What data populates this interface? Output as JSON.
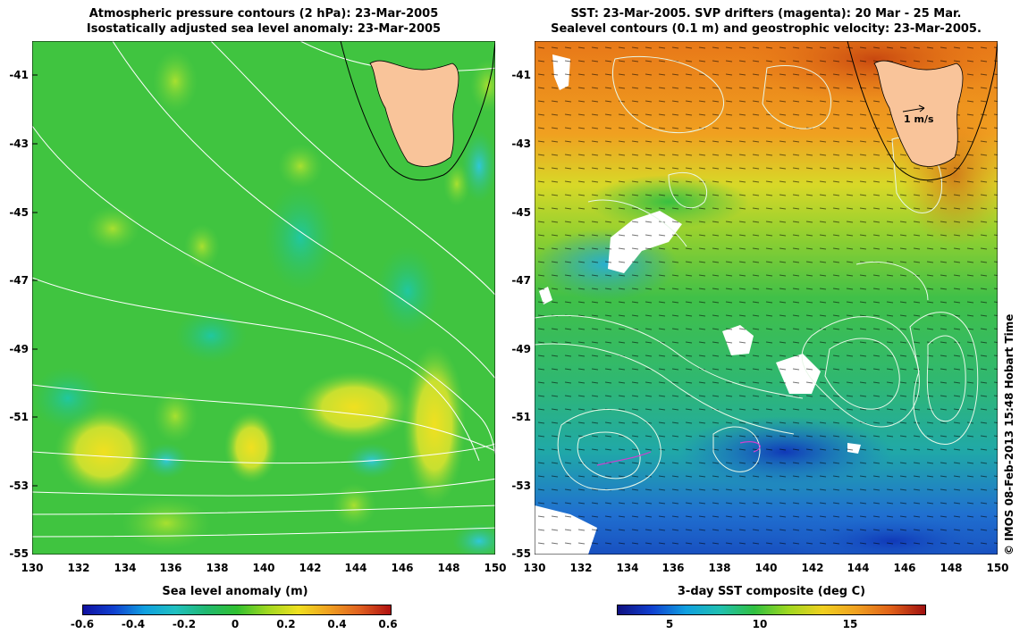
{
  "left": {
    "title_line1": "Atmospheric pressure contours (2 hPa): 23-Mar-2005",
    "title_line2": "Isostatically adjusted sea level anomaly: 23-Mar-2005",
    "colorbar_label": "Sea level anomaly (m)",
    "colorbar_ticks": [
      "-0.6",
      "-0.4",
      "-0.2",
      "0",
      "0.2",
      "0.4",
      "0.6"
    ]
  },
  "right": {
    "title_line1": "SST: 23-Mar-2005. SVP drifters (magenta): 20 Mar - 25 Mar.",
    "title_line2": "Sealevel contours (0.1 m) and geostrophic velocity: 23-Mar-2005.",
    "colorbar_label": "3-day SST composite (deg C)",
    "colorbar_ticks": [
      "5",
      "10",
      "15"
    ],
    "velocity_scale_label": "1 m/s"
  },
  "axes": {
    "lat_ticks": [
      "-41",
      "-43",
      "-45",
      "-47",
      "-49",
      "-51",
      "-53",
      "-55"
    ],
    "lon_ticks": [
      "130",
      "132",
      "134",
      "136",
      "138",
      "140",
      "142",
      "144",
      "146",
      "148",
      "150"
    ]
  },
  "credit": "© IMOS 08-Feb-2013 15:48 Hobart Time",
  "colors": {
    "land": "#f9c49a",
    "sla_base": "#3fc83f",
    "sst_warm": "#f0a020",
    "sst_cold": "#2080d0"
  }
}
